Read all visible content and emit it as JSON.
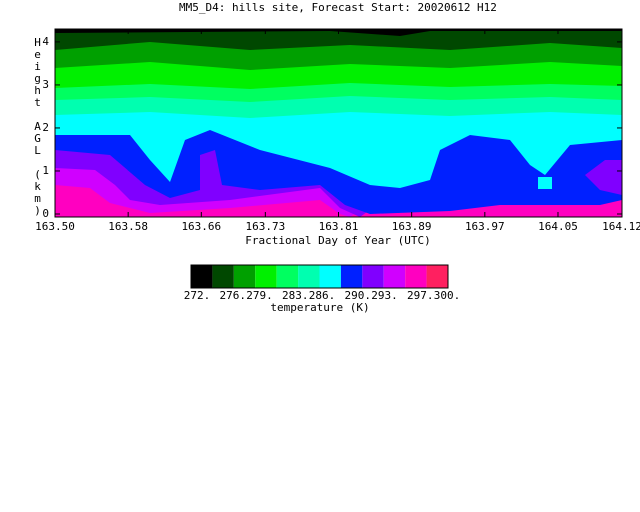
{
  "chart_data": {
    "type": "contour",
    "title": "MM5_D4: hills site,  Forecast Start: 20020612 H12",
    "x_label": "Fractional Day of Year (UTC)",
    "y_label": "Height AGL (km)",
    "xlim": [
      163.5,
      164.12
    ],
    "xticks": [
      {
        "value": 163.5,
        "label": "163.50"
      },
      {
        "value": 163.58,
        "label": "163.58"
      },
      {
        "value": 163.66,
        "label": "163.66"
      },
      {
        "value": 163.73,
        "label": "163.73"
      },
      {
        "value": 163.81,
        "label": "163.81"
      },
      {
        "value": 163.89,
        "label": "163.89"
      },
      {
        "value": 163.97,
        "label": "163.97"
      },
      {
        "value": 164.05,
        "label": "164.05"
      },
      {
        "value": 164.12,
        "label": "164.12"
      }
    ],
    "ylim": [
      0,
      4.3
    ],
    "yticks": [
      0,
      1,
      2,
      3,
      4
    ],
    "colors": [
      "#000000",
      "#004800",
      "#00a000",
      "#00f000",
      "#00ff60",
      "#00ffb0",
      "#00ffff",
      "#0020ff",
      "#8000ff",
      "#d000ff",
      "#ff00c0",
      "#ff2060"
    ],
    "colorbar": {
      "label": "temperature (K)",
      "lim": [
        272,
        300
      ],
      "ticks": [
        {
          "value": 272,
          "label": "272."
        },
        {
          "value": 276,
          "label": "276."
        },
        {
          "value": 279,
          "label": "279."
        },
        {
          "value": 283,
          "label": "283."
        },
        {
          "value": 286,
          "label": "286."
        },
        {
          "value": 290,
          "label": "290."
        },
        {
          "value": 293,
          "label": "293."
        },
        {
          "value": 297,
          "label": "297."
        },
        {
          "value": 300,
          "label": "300."
        }
      ]
    }
  }
}
